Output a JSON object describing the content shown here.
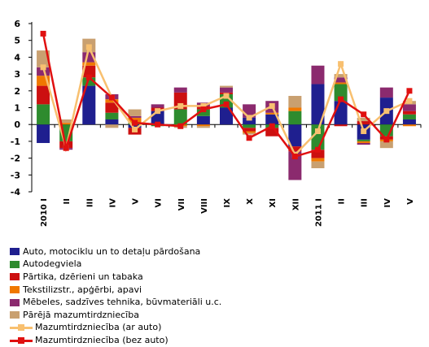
{
  "chart_data": {
    "type": "bar",
    "categories": [
      "2010 I",
      "II",
      "III",
      "IV",
      "V",
      "VI",
      "VII",
      "VIII",
      "IX",
      "X",
      "XI",
      "XII",
      "2011 I",
      "II",
      "III",
      "IV",
      "V"
    ],
    "yticks": [
      "-4",
      "-3",
      "-2",
      "-1",
      "0",
      "1",
      "2",
      "3",
      "4",
      "5",
      "6"
    ],
    "ylim": [
      -4,
      6
    ],
    "series": [
      {
        "name": "Auto, motociklu un to detaļu pārdošana",
        "color": "#1f1f8f",
        "values": [
          -1.1,
          0,
          2.3,
          0.3,
          -0.2,
          0.8,
          0,
          0.5,
          1.0,
          0.4,
          0.6,
          -1.3,
          2.4,
          1.4,
          -0.9,
          1.6,
          0.3
        ]
      },
      {
        "name": "Autodegviela",
        "color": "#2e8b2e",
        "values": [
          1.2,
          -1.0,
          0.5,
          0.4,
          0.1,
          -0.1,
          0.9,
          0.4,
          0.8,
          -0.2,
          -0.2,
          0.8,
          -1.5,
          1.0,
          -0.1,
          -0.7,
          0.3
        ]
      },
      {
        "name": "Pārtika, dzērieni un tabaka",
        "color": "#cc1010",
        "values": [
          1.1,
          -0.4,
          0.7,
          0.6,
          -0.4,
          0.2,
          1.0,
          0.2,
          0.1,
          -0.2,
          -0.5,
          -0.3,
          -0.5,
          -0.1,
          0.2,
          -0.2,
          0.2
        ]
      },
      {
        "name": "Tekstilizstr., apģērbi, apavi",
        "color": "#f07800",
        "values": [
          0.6,
          0.1,
          0.2,
          0.2,
          0.3,
          0,
          -0.1,
          -0.1,
          0,
          -0.1,
          0.1,
          0.2,
          -0.2,
          0.1,
          -0.1,
          -0.1,
          -0.1
        ]
      },
      {
        "name": "Mēbeles, sadzīves tehnika, būvmateriāli u.c.",
        "color": "#8b2a6e",
        "values": [
          0.5,
          -0.1,
          0.6,
          0.3,
          0.1,
          0.2,
          0.3,
          0.2,
          0.3,
          0.8,
          0.7,
          -1.7,
          1.1,
          0.3,
          -0.1,
          0.6,
          0.4
        ]
      },
      {
        "name": "Pārējā mazumtirdzniecība",
        "color": "#c9a070",
        "values": [
          1.0,
          0.2,
          0.8,
          -0.2,
          0.4,
          0,
          -0.1,
          -0.1,
          0.1,
          -0.1,
          0,
          0.7,
          -0.4,
          0.2,
          0.2,
          -0.4,
          0.2
        ]
      }
    ],
    "lines": [
      {
        "name": "Mazumtirdzniecība (ar auto)",
        "color": "#f8c070",
        "values": [
          3.4,
          -1.4,
          4.6,
          1.6,
          -0.3,
          0.8,
          1.1,
          1.1,
          1.7,
          0.4,
          1.1,
          -1.8,
          -0.4,
          3.6,
          -0.4,
          0.8,
          1.4
        ]
      },
      {
        "name": "Mazumtirdzniecība (bez auto)",
        "color": "#e01010",
        "values": [
          5.4,
          -1.4,
          2.8,
          1.6,
          0.1,
          0,
          -0.1,
          0.9,
          1.2,
          -0.8,
          -0.1,
          -1.9,
          -1.5,
          1.5,
          0.6,
          -0.9,
          2.0
        ]
      }
    ]
  }
}
